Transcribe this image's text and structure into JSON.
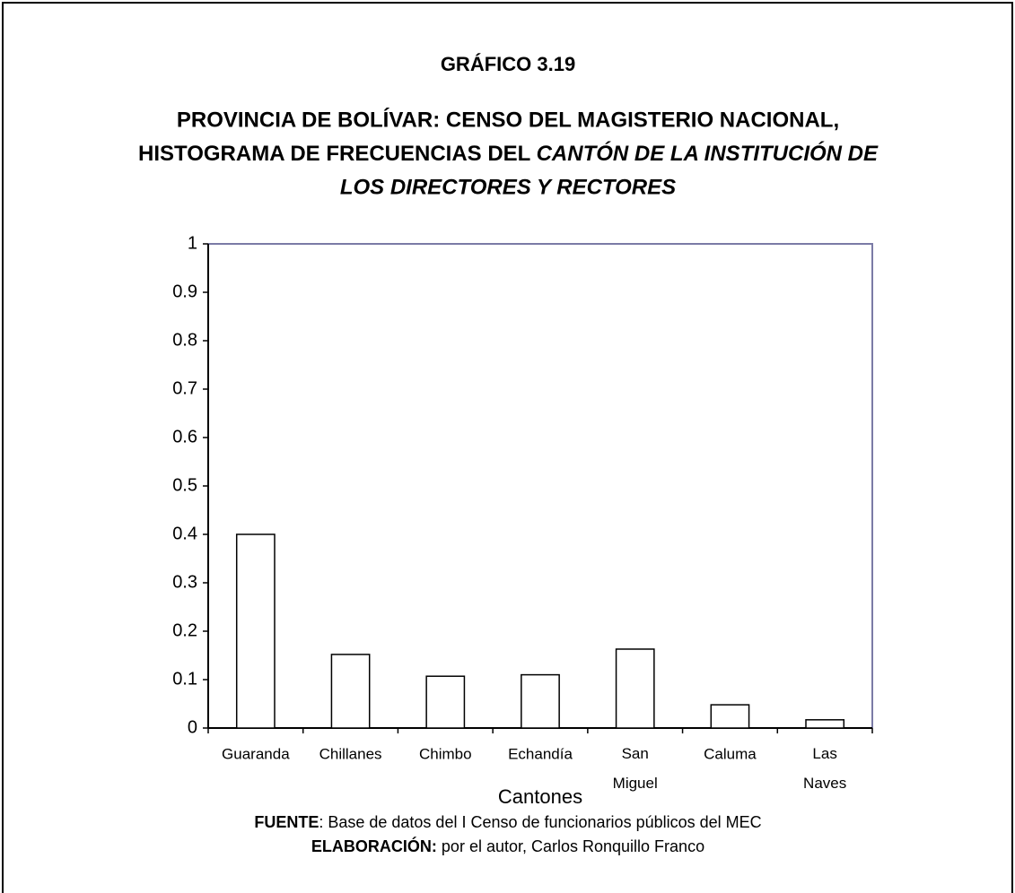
{
  "chart_data": {
    "type": "bar",
    "title": "GRÁFICO 3.19",
    "subtitle_lines": [
      "PROVINCIA DE BOLÍVAR: CENSO DEL MAGISTERIO NACIONAL,",
      "HISTOGRAMA DE FRECUENCIAS DEL",
      "CANTÓN DE LA INSTITUCIÓN DE",
      "LOS DIRECTORES Y RECTORES"
    ],
    "x_label": "Cantones",
    "categories": [
      "Guaranda",
      "Chillanes",
      "Chimbo",
      "Echandía",
      "San Miguel",
      "Caluma",
      "Las Naves"
    ],
    "values": [
      0.4,
      0.152,
      0.107,
      0.11,
      0.163,
      0.048,
      0.017
    ],
    "color": "#ffffff",
    "ylim": [
      0,
      1
    ],
    "yticks": [
      0,
      0.1,
      0.2,
      0.3,
      0.4,
      0.5,
      0.6,
      0.7,
      0.8,
      0.9,
      1
    ],
    "grid": false,
    "source": {
      "label": "FUENTE",
      "text": ": Base de datos del I Censo de funcionarios públicos del MEC"
    },
    "credit": {
      "label": "ELABORACIÓN:",
      "text": " por el autor, Carlos Ronquillo Franco"
    }
  }
}
